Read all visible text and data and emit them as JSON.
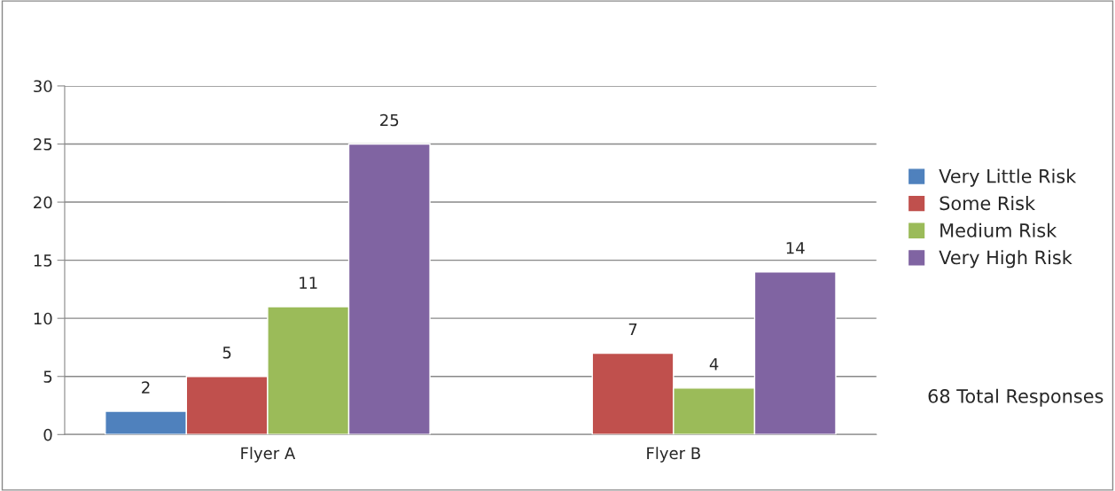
{
  "chart_data": {
    "type": "bar",
    "categories": [
      "Flyer A",
      "Flyer B"
    ],
    "series": [
      {
        "name": "Very Little Risk",
        "color": "#4f81bd",
        "values": [
          2,
          null
        ]
      },
      {
        "name": "Some Risk",
        "color": "#c0504d",
        "values": [
          5,
          7
        ]
      },
      {
        "name": "Medium Risk",
        "color": "#9bbb59",
        "values": [
          11,
          4
        ]
      },
      {
        "name": "Very High Risk",
        "color": "#8064a2",
        "values": [
          25,
          14
        ]
      }
    ],
    "ylim": [
      0,
      30
    ],
    "yticks": [
      0,
      5,
      10,
      15,
      20,
      25,
      30
    ],
    "grid": "y",
    "legend": "right",
    "data_labels": true,
    "annotations": [
      "68 Total Responses"
    ]
  }
}
